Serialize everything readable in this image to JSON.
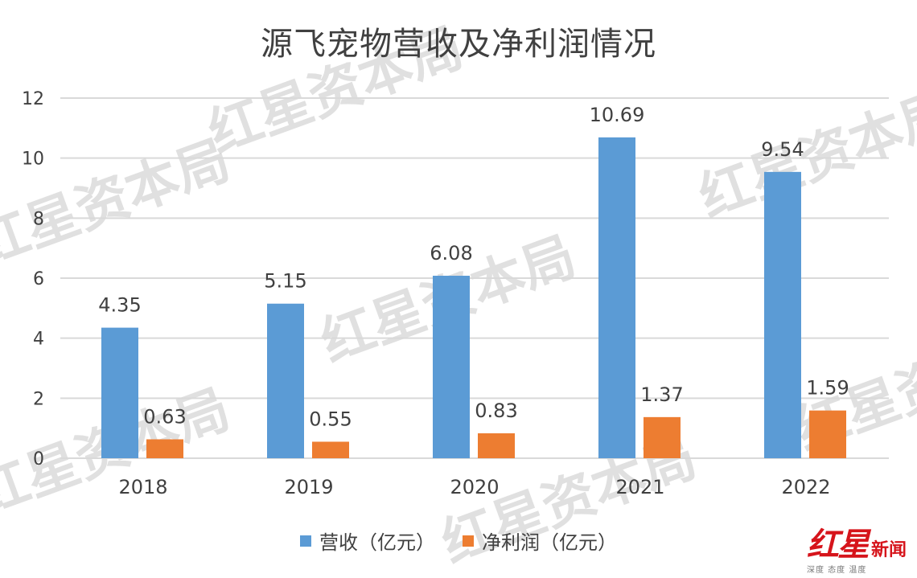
{
  "colors": {
    "revenue": "#5B9BD5",
    "profit": "#ED7D31",
    "grid": "#D9D9D9",
    "text": "#404040",
    "brand_red": "#D6141B"
  },
  "watermark": {
    "text": "红星资本局"
  },
  "logo": {
    "brand": "红星",
    "suffix": "新闻",
    "slogan": "深度 态度 温度"
  },
  "chart_data": {
    "type": "bar",
    "title": "源飞宠物营收及净利润情况",
    "categories": [
      "2018",
      "2019",
      "2020",
      "2021",
      "2022"
    ],
    "series": [
      {
        "name": "营收（亿元）",
        "values": [
          4.35,
          5.15,
          6.08,
          10.69,
          9.54
        ],
        "labels": [
          "4.35",
          "5.15",
          "6.08",
          "10.69",
          "9.54"
        ]
      },
      {
        "name": "净利润（亿元）",
        "values": [
          0.63,
          0.55,
          0.83,
          1.37,
          1.59
        ],
        "labels": [
          "0.63",
          "0.55",
          "0.83",
          "1.37",
          "1.59"
        ]
      }
    ],
    "ylim": [
      0,
      12
    ],
    "yticks": [
      "0",
      "2",
      "4",
      "6",
      "8",
      "10",
      "12"
    ],
    "grid": true,
    "legend_position": "bottom",
    "xlabel": "",
    "ylabel": ""
  }
}
